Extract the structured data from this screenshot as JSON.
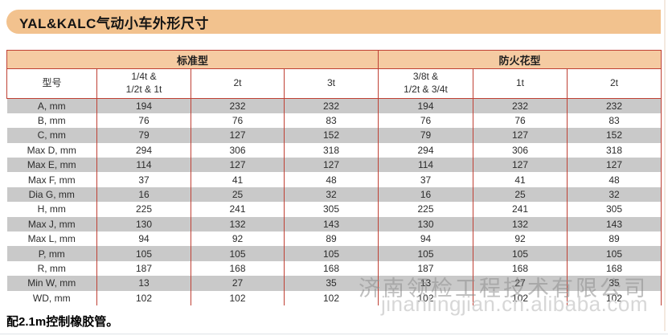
{
  "page": {
    "title": "YAL&KALC气动小车外形尺寸",
    "footer_note": "配2.1m控制橡胶管。",
    "watermark": {
      "company": "济南领检工程技术有限公司",
      "url": "jinanlingjian.cn.alibaba.com"
    }
  },
  "colors": {
    "banner_peach": "#f2c28e",
    "header_peach": "#f5cba2",
    "table_border_red": "#bf4034",
    "row_shade_gray": "#c9c9c9",
    "watermark_gray": "#8c8c8c",
    "watermark_url_gray": "#d7d7d7"
  },
  "table": {
    "group_headers": [
      {
        "label": "标准型"
      },
      {
        "label": "防火花型"
      }
    ],
    "columns": [
      "型号",
      "1/4t &\n1/2t & 1t",
      "2t",
      "3t",
      "3/8t &\n1/2t & 3/4t",
      "1t",
      "2t"
    ],
    "rows": [
      {
        "label": "A, mm",
        "values": [
          194,
          232,
          232,
          194,
          232,
          232
        ]
      },
      {
        "label": "B, mm",
        "values": [
          76,
          76,
          83,
          76,
          76,
          83
        ]
      },
      {
        "label": "C, mm",
        "values": [
          79,
          127,
          152,
          79,
          127,
          152
        ]
      },
      {
        "label": "Max D, mm",
        "values": [
          294,
          306,
          318,
          294,
          306,
          318
        ]
      },
      {
        "label": "Max E, mm",
        "values": [
          114,
          127,
          127,
          114,
          127,
          127
        ]
      },
      {
        "label": "Max F, mm",
        "values": [
          37,
          41,
          48,
          37,
          41,
          48
        ]
      },
      {
        "label": "Dia G, mm",
        "values": [
          16,
          25,
          32,
          16,
          25,
          32
        ]
      },
      {
        "label": "H, mm",
        "values": [
          225,
          241,
          305,
          225,
          241,
          305
        ]
      },
      {
        "label": "Max J, mm",
        "values": [
          130,
          132,
          143,
          130,
          132,
          143
        ]
      },
      {
        "label": "Max L, mm",
        "values": [
          94,
          92,
          89,
          94,
          92,
          89
        ]
      },
      {
        "label": "P, mm",
        "values": [
          105,
          105,
          105,
          105,
          105,
          105
        ]
      },
      {
        "label": "R, mm",
        "values": [
          187,
          168,
          168,
          187,
          168,
          168
        ]
      },
      {
        "label": "Min W, mm",
        "values": [
          13,
          27,
          35,
          13,
          27,
          35
        ]
      },
      {
        "label": "WD, mm",
        "values": [
          102,
          102,
          102,
          102,
          102,
          102
        ]
      }
    ]
  }
}
